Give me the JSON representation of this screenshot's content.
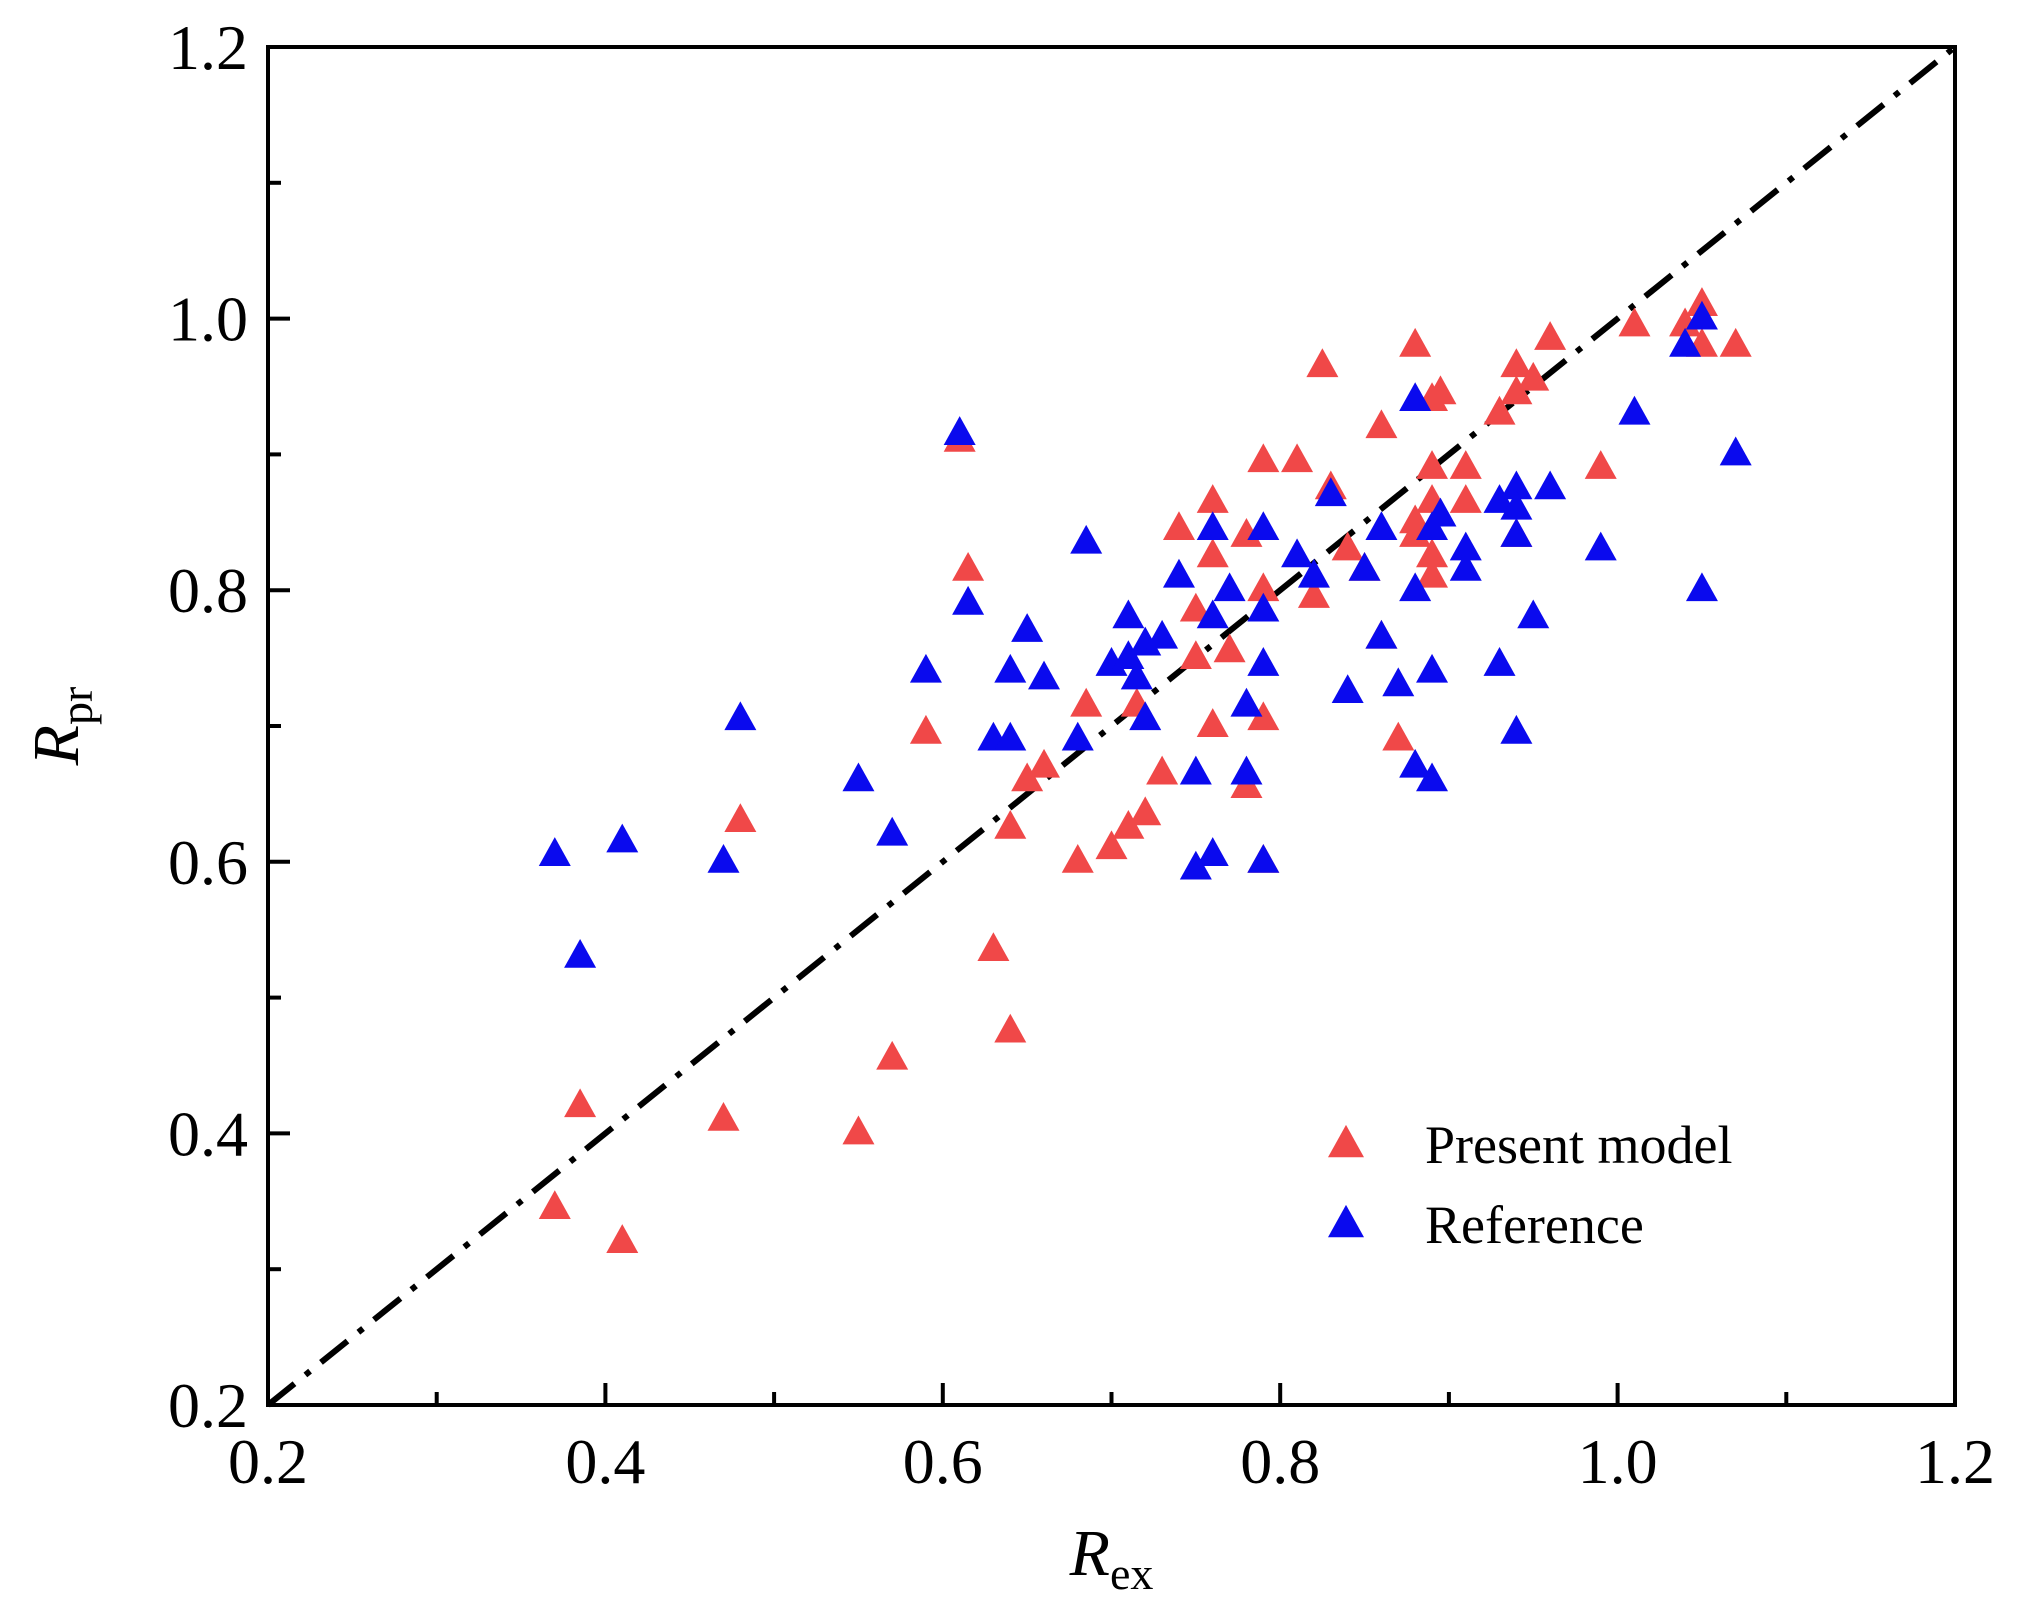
{
  "chart_data": {
    "type": "scatter",
    "title": "",
    "xlabel": {
      "main": "R",
      "sub": "ex"
    },
    "ylabel": {
      "main": "R",
      "sub": "pr"
    },
    "xlim": [
      0.2,
      1.2
    ],
    "ylim": [
      0.2,
      1.2
    ],
    "xticks": [
      "0.2",
      "0.4",
      "0.6",
      "0.8",
      "1.0",
      "1.2"
    ],
    "yticks": [
      "0.2",
      "0.4",
      "0.6",
      "0.8",
      "1.0",
      "1.2"
    ],
    "x_tick_values": [
      0.2,
      0.4,
      0.6,
      0.8,
      1.0,
      1.2
    ],
    "y_tick_values": [
      0.2,
      0.4,
      0.6,
      0.8,
      1.0,
      1.2
    ],
    "minor_step": 0.1,
    "grid": false,
    "legend_position": "bottom-right",
    "reference_line": {
      "style": "dash-dot",
      "color": "#000000",
      "from": [
        0.2,
        0.2
      ],
      "to": [
        1.2,
        1.2
      ]
    },
    "series": [
      {
        "name": "Present model",
        "marker": "triangle",
        "color": "#f04848",
        "points": [
          [
            0.37,
            0.345
          ],
          [
            0.385,
            0.42
          ],
          [
            0.41,
            0.32
          ],
          [
            0.47,
            0.41
          ],
          [
            0.48,
            0.63
          ],
          [
            0.55,
            0.4
          ],
          [
            0.57,
            0.455
          ],
          [
            0.59,
            0.695
          ],
          [
            0.61,
            0.91
          ],
          [
            0.615,
            0.815
          ],
          [
            0.63,
            0.535
          ],
          [
            0.64,
            0.625
          ],
          [
            0.64,
            0.475
          ],
          [
            0.65,
            0.66
          ],
          [
            0.66,
            0.67
          ],
          [
            0.68,
            0.6
          ],
          [
            0.685,
            0.715
          ],
          [
            0.7,
            0.61
          ],
          [
            0.71,
            0.625
          ],
          [
            0.715,
            0.715
          ],
          [
            0.72,
            0.635
          ],
          [
            0.73,
            0.665
          ],
          [
            0.74,
            0.845
          ],
          [
            0.75,
            0.785
          ],
          [
            0.75,
            0.75
          ],
          [
            0.76,
            0.865
          ],
          [
            0.76,
            0.825
          ],
          [
            0.76,
            0.7
          ],
          [
            0.77,
            0.755
          ],
          [
            0.78,
            0.84
          ],
          [
            0.78,
            0.655
          ],
          [
            0.79,
            0.895
          ],
          [
            0.79,
            0.8
          ],
          [
            0.79,
            0.705
          ],
          [
            0.79,
            0.6
          ],
          [
            0.81,
            0.895
          ],
          [
            0.82,
            0.795
          ],
          [
            0.825,
            0.965
          ],
          [
            0.83,
            0.875
          ],
          [
            0.84,
            0.83
          ],
          [
            0.85,
            0.815
          ],
          [
            0.86,
            0.92
          ],
          [
            0.86,
            0.765
          ],
          [
            0.87,
            0.69
          ],
          [
            0.88,
            0.98
          ],
          [
            0.88,
            0.85
          ],
          [
            0.88,
            0.84
          ],
          [
            0.89,
            0.94
          ],
          [
            0.89,
            0.89
          ],
          [
            0.89,
            0.865
          ],
          [
            0.89,
            0.825
          ],
          [
            0.89,
            0.81
          ],
          [
            0.895,
            0.945
          ],
          [
            0.91,
            0.89
          ],
          [
            0.91,
            0.865
          ],
          [
            0.93,
            0.93
          ],
          [
            0.94,
            0.965
          ],
          [
            0.94,
            0.945
          ],
          [
            0.94,
            0.84
          ],
          [
            0.95,
            0.955
          ],
          [
            0.96,
            0.985
          ],
          [
            0.99,
            0.89
          ],
          [
            1.01,
            0.995
          ],
          [
            1.04,
            0.995
          ],
          [
            1.05,
            1.01
          ],
          [
            1.05,
            0.98
          ],
          [
            1.07,
            0.98
          ]
        ]
      },
      {
        "name": "Reference",
        "marker": "triangle",
        "color": "#0a0aee",
        "points": [
          [
            0.37,
            0.605
          ],
          [
            0.385,
            0.53
          ],
          [
            0.41,
            0.615
          ],
          [
            0.47,
            0.6
          ],
          [
            0.48,
            0.705
          ],
          [
            0.55,
            0.66
          ],
          [
            0.57,
            0.62
          ],
          [
            0.59,
            0.74
          ],
          [
            0.61,
            0.915
          ],
          [
            0.615,
            0.79
          ],
          [
            0.63,
            0.69
          ],
          [
            0.64,
            0.74
          ],
          [
            0.64,
            0.69
          ],
          [
            0.65,
            0.77
          ],
          [
            0.66,
            0.735
          ],
          [
            0.68,
            0.69
          ],
          [
            0.685,
            0.835
          ],
          [
            0.7,
            0.745
          ],
          [
            0.71,
            0.78
          ],
          [
            0.71,
            0.75
          ],
          [
            0.715,
            0.735
          ],
          [
            0.72,
            0.76
          ],
          [
            0.72,
            0.705
          ],
          [
            0.73,
            0.765
          ],
          [
            0.74,
            0.81
          ],
          [
            0.75,
            0.665
          ],
          [
            0.75,
            0.595
          ],
          [
            0.76,
            0.845
          ],
          [
            0.76,
            0.78
          ],
          [
            0.76,
            0.605
          ],
          [
            0.77,
            0.8
          ],
          [
            0.78,
            0.715
          ],
          [
            0.78,
            0.665
          ],
          [
            0.79,
            0.845
          ],
          [
            0.79,
            0.785
          ],
          [
            0.79,
            0.745
          ],
          [
            0.79,
            0.6
          ],
          [
            0.81,
            0.825
          ],
          [
            0.82,
            0.81
          ],
          [
            0.83,
            0.87
          ],
          [
            0.84,
            0.725
          ],
          [
            0.85,
            0.815
          ],
          [
            0.86,
            0.845
          ],
          [
            0.86,
            0.765
          ],
          [
            0.87,
            0.73
          ],
          [
            0.88,
            0.94
          ],
          [
            0.88,
            0.8
          ],
          [
            0.88,
            0.67
          ],
          [
            0.89,
            0.845
          ],
          [
            0.89,
            0.74
          ],
          [
            0.89,
            0.66
          ],
          [
            0.895,
            0.855
          ],
          [
            0.91,
            0.83
          ],
          [
            0.91,
            0.815
          ],
          [
            0.93,
            0.865
          ],
          [
            0.93,
            0.745
          ],
          [
            0.94,
            0.875
          ],
          [
            0.94,
            0.86
          ],
          [
            0.94,
            0.84
          ],
          [
            0.94,
            0.695
          ],
          [
            0.95,
            0.78
          ],
          [
            0.96,
            0.875
          ],
          [
            0.99,
            0.83
          ],
          [
            1.01,
            0.93
          ],
          [
            1.04,
            0.98
          ],
          [
            1.05,
            1.0
          ],
          [
            1.05,
            0.8
          ],
          [
            1.07,
            0.9
          ]
        ]
      }
    ]
  }
}
